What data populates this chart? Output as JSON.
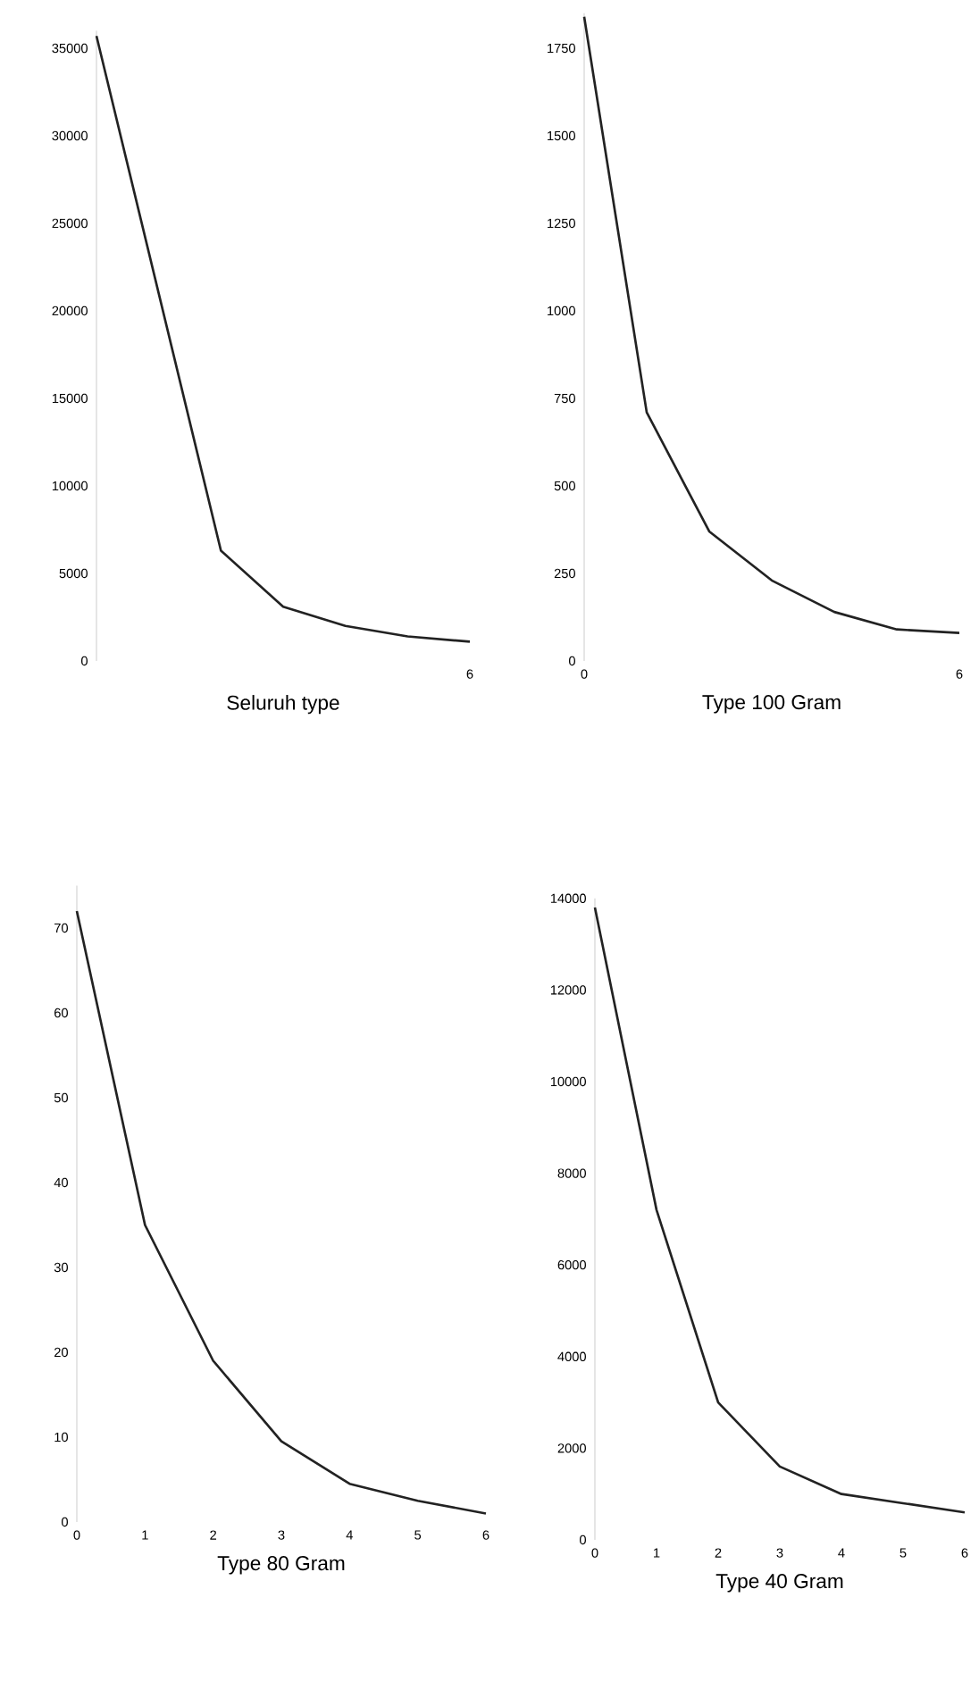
{
  "chart_data": [
    {
      "type": "line",
      "xlabel": "Seluruh type",
      "categories": [
        null,
        null,
        null,
        null,
        null,
        null,
        "6"
      ],
      "series": [
        {
          "color": "#222222",
          "values": [
            35700,
            21000,
            6300,
            3100,
            2000,
            1400,
            1100
          ]
        }
      ],
      "ylim": [
        0,
        36000
      ],
      "yticks": [
        0,
        5000,
        10000,
        15000,
        20000,
        25000,
        30000,
        35000
      ]
    },
    {
      "type": "line",
      "xlabel": "Type 100 Gram",
      "categories": [
        "0",
        null,
        null,
        null,
        null,
        null,
        "6"
      ],
      "series": [
        {
          "color": "#222222",
          "values": [
            1840,
            710,
            370,
            230,
            140,
            90,
            80
          ]
        }
      ],
      "ylim": [
        0,
        1850
      ],
      "yticks": [
        0,
        250,
        500,
        750,
        1000,
        1250,
        1500,
        1750
      ]
    },
    {
      "type": "line",
      "xlabel": "Type 80 Gram",
      "categories": [
        "0",
        "1",
        "2",
        "3",
        "4",
        "5",
        "6"
      ],
      "series": [
        {
          "color": "#222222",
          "values": [
            72,
            35,
            19,
            9.5,
            4.5,
            2.5,
            1
          ]
        }
      ],
      "ylim": [
        0,
        75
      ],
      "yticks": [
        0,
        10,
        20,
        30,
        40,
        50,
        60,
        70
      ]
    },
    {
      "type": "line",
      "xlabel": "Type 40 Gram",
      "categories": [
        "0",
        "1",
        "2",
        "3",
        "4",
        "5",
        "6"
      ],
      "series": [
        {
          "color": "#222222",
          "values": [
            13800,
            7200,
            3000,
            1600,
            1000,
            800,
            600
          ]
        }
      ],
      "ylim": [
        0,
        14000
      ],
      "yticks": [
        0,
        2000,
        4000,
        6000,
        8000,
        10000,
        12000,
        14000
      ]
    }
  ]
}
